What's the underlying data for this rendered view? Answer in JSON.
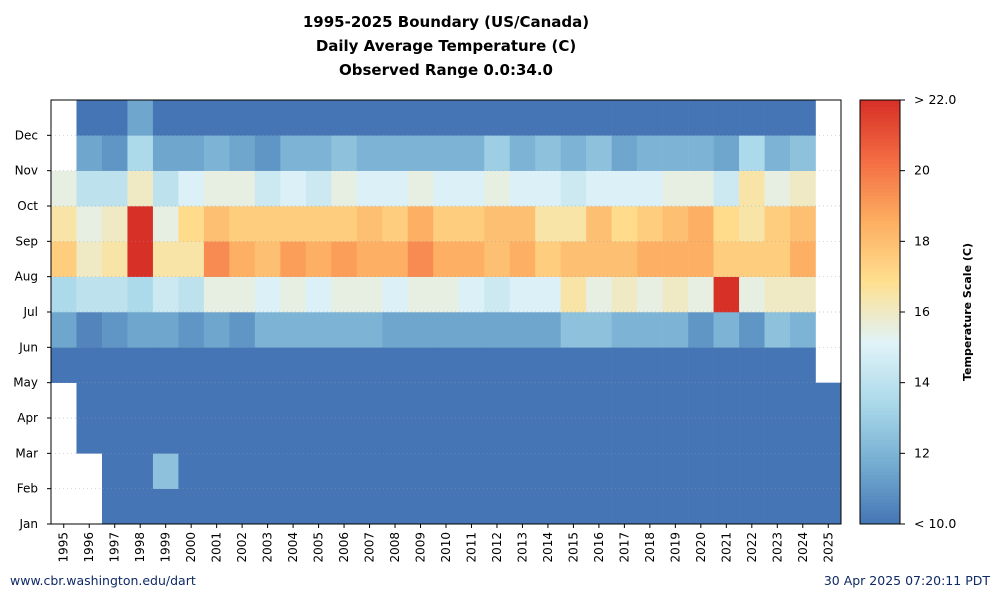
{
  "chart_data": {
    "type": "heatmap",
    "title_lines": [
      "1995-2025 Boundary (US/Canada)",
      "Daily Average Temperature (C)",
      "Observed Range 0.0:34.0"
    ],
    "x_categories": [
      "1995",
      "1996",
      "1997",
      "1998",
      "1999",
      "2000",
      "2001",
      "2002",
      "2003",
      "2004",
      "2005",
      "2006",
      "2007",
      "2008",
      "2009",
      "2010",
      "2011",
      "2012",
      "2013",
      "2014",
      "2015",
      "2016",
      "2017",
      "2018",
      "2019",
      "2020",
      "2021",
      "2022",
      "2023",
      "2024",
      "2025"
    ],
    "y_categories": [
      "Jan",
      "Feb",
      "Mar",
      "Apr",
      "May",
      "Jun",
      "Jul",
      "Aug",
      "Sep",
      "Oct",
      "Nov",
      "Dec"
    ],
    "value_label": "Daily average temperature (C)",
    "color_scale": {
      "label": "Temperature Scale (C)",
      "min": 10,
      "max": 22,
      "tick_labels": [
        "< 10.0",
        "12",
        "14",
        "16",
        "18",
        "20",
        "> 22.0"
      ],
      "tick_values": [
        10,
        12,
        14,
        16,
        18,
        20,
        22
      ],
      "colors": [
        "#4575b4",
        "#74add1",
        "#abd9e9",
        "#e0f3f8",
        "#fee090",
        "#fdae61",
        "#f46d43",
        "#d73027"
      ]
    },
    "approximate_monthly_values": [
      {
        "year": "1995",
        "months": [
          null,
          null,
          null,
          null,
          10.0,
          11.5,
          13.5,
          17.5,
          16.5,
          15.5,
          null,
          null
        ]
      },
      {
        "year": "1996",
        "months": [
          null,
          null,
          10.0,
          10.0,
          10.0,
          10.5,
          14.0,
          16.0,
          15.5,
          14.0,
          11.5,
          10.0
        ]
      },
      {
        "year": "1997",
        "months": [
          10.0,
          10.0,
          10.0,
          10.0,
          10.0,
          11.0,
          14.0,
          16.5,
          16.0,
          14.0,
          11.0,
          10.0
        ]
      },
      {
        "year": "1998",
        "months": [
          10.0,
          10.0,
          10.0,
          10.0,
          10.0,
          11.5,
          13.5,
          22.0,
          22.0,
          16.0,
          13.5,
          11.5
        ]
      },
      {
        "year": "1999",
        "months": [
          10.0,
          12.5,
          10.0,
          10.0,
          10.0,
          11.5,
          14.5,
          16.5,
          15.5,
          14.0,
          11.5,
          10.0
        ]
      },
      {
        "year": "2000",
        "months": [
          10.0,
          10.0,
          10.0,
          10.0,
          10.0,
          11.0,
          14.0,
          16.5,
          17.0,
          15.0,
          11.5,
          10.0
        ]
      },
      {
        "year": "2001",
        "months": [
          10.0,
          10.0,
          10.0,
          10.0,
          10.0,
          11.5,
          15.5,
          19.5,
          18.0,
          15.5,
          12.0,
          10.0
        ]
      },
      {
        "year": "2002",
        "months": [
          10.0,
          10.0,
          10.0,
          10.0,
          10.0,
          11.0,
          15.5,
          18.5,
          17.5,
          15.5,
          11.5,
          10.0
        ]
      },
      {
        "year": "2003",
        "months": [
          10.0,
          10.0,
          10.0,
          10.0,
          10.0,
          12.0,
          15.0,
          18.0,
          17.5,
          14.5,
          11.0,
          10.0
        ]
      },
      {
        "year": "2004",
        "months": [
          10.0,
          10.0,
          10.0,
          10.0,
          10.0,
          12.0,
          15.5,
          19.0,
          17.5,
          15.0,
          12.0,
          10.0
        ]
      },
      {
        "year": "2005",
        "months": [
          10.0,
          10.0,
          10.0,
          10.0,
          10.0,
          12.0,
          15.0,
          18.5,
          17.5,
          14.5,
          12.0,
          10.0
        ]
      },
      {
        "year": "2006",
        "months": [
          10.0,
          10.0,
          10.0,
          10.0,
          10.0,
          12.0,
          15.5,
          19.0,
          17.5,
          15.5,
          12.5,
          10.0
        ]
      },
      {
        "year": "2007",
        "months": [
          10.0,
          10.0,
          10.0,
          10.0,
          10.0,
          12.0,
          15.5,
          18.5,
          18.0,
          15.0,
          12.0,
          10.0
        ]
      },
      {
        "year": "2008",
        "months": [
          10.0,
          10.0,
          10.0,
          10.0,
          10.0,
          11.5,
          15.0,
          18.5,
          17.5,
          15.0,
          12.0,
          10.0
        ]
      },
      {
        "year": "2009",
        "months": [
          10.0,
          10.0,
          10.0,
          10.0,
          10.0,
          11.5,
          15.5,
          19.5,
          18.5,
          15.5,
          12.0,
          10.0
        ]
      },
      {
        "year": "2010",
        "months": [
          10.0,
          10.0,
          10.0,
          10.0,
          10.0,
          11.5,
          15.5,
          18.5,
          17.5,
          15.0,
          12.0,
          10.0
        ]
      },
      {
        "year": "2011",
        "months": [
          10.0,
          10.0,
          10.0,
          10.0,
          10.0,
          11.5,
          15.0,
          18.5,
          17.5,
          15.0,
          12.0,
          10.0
        ]
      },
      {
        "year": "2012",
        "months": [
          10.0,
          10.0,
          10.0,
          10.0,
          10.0,
          11.5,
          14.5,
          18.0,
          18.0,
          15.5,
          13.0,
          10.0
        ]
      },
      {
        "year": "2013",
        "months": [
          10.0,
          10.0,
          10.0,
          10.0,
          10.0,
          11.5,
          15.0,
          18.5,
          18.0,
          15.0,
          12.0,
          10.0
        ]
      },
      {
        "year": "2014",
        "months": [
          10.0,
          10.0,
          10.0,
          10.0,
          10.0,
          11.5,
          15.0,
          17.5,
          16.5,
          15.0,
          12.5,
          10.0
        ]
      },
      {
        "year": "2015",
        "months": [
          10.0,
          10.0,
          10.0,
          10.0,
          10.0,
          12.5,
          16.5,
          18.0,
          16.5,
          14.5,
          12.0,
          10.0
        ]
      },
      {
        "year": "2016",
        "months": [
          10.0,
          10.0,
          10.0,
          10.0,
          10.0,
          12.5,
          15.5,
          18.0,
          18.0,
          15.0,
          12.5,
          10.0
        ]
      },
      {
        "year": "2017",
        "months": [
          10.0,
          10.0,
          10.0,
          10.0,
          10.0,
          12.0,
          16.0,
          18.0,
          17.0,
          15.0,
          11.5,
          10.0
        ]
      },
      {
        "year": "2018",
        "months": [
          10.0,
          10.0,
          10.0,
          10.0,
          10.0,
          12.0,
          15.5,
          18.5,
          17.5,
          15.0,
          12.0,
          10.0
        ]
      },
      {
        "year": "2019",
        "months": [
          10.0,
          10.0,
          10.0,
          10.0,
          10.0,
          12.0,
          16.0,
          18.5,
          18.0,
          15.5,
          12.0,
          10.0
        ]
      },
      {
        "year": "2020",
        "months": [
          10.0,
          10.0,
          10.0,
          10.0,
          10.0,
          11.0,
          15.5,
          18.5,
          18.5,
          15.5,
          12.0,
          10.0
        ]
      },
      {
        "year": "2021",
        "months": [
          10.0,
          10.0,
          10.0,
          10.0,
          10.0,
          12.0,
          22.0,
          17.5,
          17.0,
          14.5,
          11.5,
          10.0
        ]
      },
      {
        "year": "2022",
        "months": [
          10.0,
          10.0,
          10.0,
          10.0,
          10.0,
          11.0,
          15.5,
          17.5,
          16.5,
          16.5,
          13.5,
          10.0
        ]
      },
      {
        "year": "2023",
        "months": [
          10.0,
          10.0,
          10.0,
          10.0,
          10.0,
          12.5,
          16.0,
          17.5,
          17.5,
          15.5,
          12.0,
          10.0
        ]
      },
      {
        "year": "2024",
        "months": [
          10.0,
          10.0,
          10.0,
          10.0,
          10.0,
          12.0,
          16.0,
          18.5,
          18.0,
          16.0,
          12.5,
          10.0
        ]
      },
      {
        "year": "2025",
        "months": [
          10.0,
          10.0,
          10.0,
          10.0,
          null,
          null,
          null,
          null,
          null,
          null,
          null,
          null
        ]
      }
    ],
    "grid": true
  },
  "footer": {
    "left": "www.cbr.washington.edu/dart",
    "right": "30 Apr 2025 07:20:11 PDT"
  }
}
